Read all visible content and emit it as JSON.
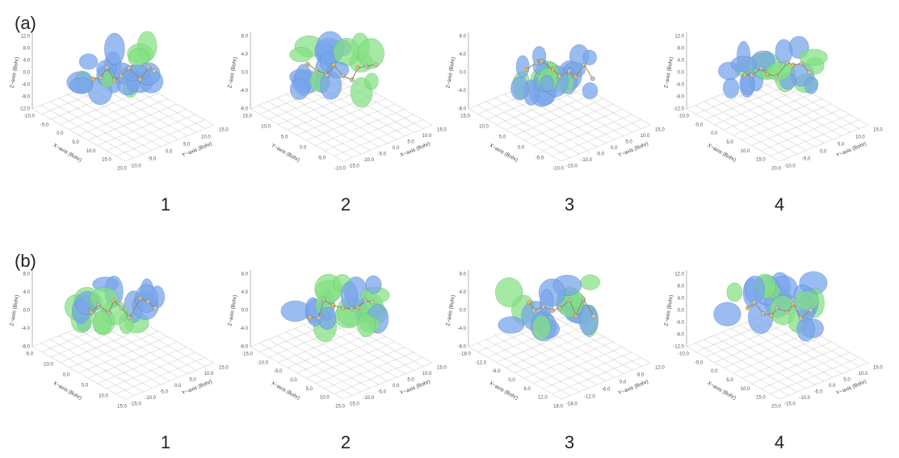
{
  "figure": {
    "rows": [
      {
        "label": "(a)",
        "panels": [
          {
            "number": "1",
            "axes": {
              "x_title": "X−axis (Bohr)",
              "y_title": "Y−axis (Bohr)",
              "z_title": "Z−axis (Bohr)",
              "x_ticks": [
                "-10.0",
                "-5.0",
                "0.0",
                "5.0",
                "10.0",
                "15.0",
                "20.0"
              ],
              "y_ticks": [
                "-10.0",
                "-5.0",
                "0.0",
                "5.0",
                "10.0",
                "15.0"
              ],
              "z_ticks": [
                "-12.0",
                "-8.0",
                "-4.0",
                "0.0",
                "4.0",
                "8.0",
                "12.0"
              ]
            }
          },
          {
            "number": "2",
            "axes": {
              "x_title": "Y−axis (Bohr)",
              "y_title": "X−axis (Bohr)",
              "z_title": "Z−axis (Bohr)",
              "x_ticks": [
                "15.0",
                "10.0",
                "5.0",
                "0.0",
                "-5.0",
                "-10.0"
              ],
              "y_ticks": [
                "-15.0",
                "-10.0",
                "-5.0",
                "0.0",
                "5.0",
                "10.0",
                "15.0"
              ],
              "z_ticks": [
                "-8.0",
                "-4.0",
                "0.0",
                "4.0",
                "8.0"
              ]
            }
          },
          {
            "number": "3",
            "axes": {
              "x_title": "X−axis (Bohr)",
              "y_title": "Y−axis (Bohr)",
              "z_title": "Z−axis (Bohr)",
              "x_ticks": [
                "15.0",
                "10.0",
                "5.0",
                "0.0",
                "-5.0",
                "-10.0"
              ],
              "y_ticks": [
                "-15.0",
                "-10.0",
                "-5.0",
                "0.0",
                "5.0",
                "10.0",
                "15.0"
              ],
              "z_ticks": [
                "-8.0",
                "-4.0",
                "0.0",
                "4.0",
                "8.0"
              ]
            }
          },
          {
            "number": "4",
            "axes": {
              "x_title": "X−axis (Bohr)",
              "y_title": "Y−axis (Bohr)",
              "z_title": "Z−axis (Bohr)",
              "x_ticks": [
                "-10.0",
                "-5.0",
                "0.0",
                "5.0",
                "10.0",
                "15.0",
                "20.0"
              ],
              "y_ticks": [
                "-10.0",
                "-5.0",
                "0.0",
                "5.0",
                "10.0",
                "15.0"
              ],
              "z_ticks": [
                "-12.0",
                "-8.0",
                "-4.0",
                "0.0",
                "4.0",
                "8.0",
                "12.0"
              ]
            }
          }
        ]
      },
      {
        "label": "(b)",
        "panels": [
          {
            "number": "1",
            "axes": {
              "x_title": "X−axis (Bohr)",
              "y_title": "Y−axis (Bohr)",
              "z_title": "Z−axis (Bohr)",
              "x_ticks": [
                "-5.0",
                "-10.0",
                "0.0",
                "5.0",
                "10.0",
                "15.0"
              ],
              "y_ticks": [
                "-15.0",
                "-10.0",
                "-5.0",
                "0.0",
                "5.0",
                "10.0",
                "15.0"
              ],
              "z_ticks": [
                "-8.0",
                "-4.0",
                "0.0",
                "4.0",
                "8.0"
              ]
            }
          },
          {
            "number": "2",
            "axes": {
              "x_title": "X−axis (Bohr)",
              "y_title": "Y−axis (Bohr)",
              "z_title": "Z−axis (Bohr)",
              "x_ticks": [
                "-15.0",
                "-10.0",
                "-5.0",
                "0.0",
                "5.0",
                "10.0",
                "15.0"
              ],
              "y_ticks": [
                "-15.0",
                "-10.0",
                "-5.0",
                "0.0",
                "5.0",
                "10.0",
                "15.0"
              ],
              "z_ticks": [
                "-8.0",
                "-4.0",
                "0.0",
                "4.0",
                "8.0"
              ]
            }
          },
          {
            "number": "3",
            "axes": {
              "x_title": "X−axis (Bohr)",
              "y_title": "Y−axis (Bohr)",
              "z_title": "Z−axis (Bohr)",
              "x_ticks": [
                "-18.0",
                "-12.0",
                "-6.0",
                "0.0",
                "6.0",
                "12.0",
                "18.0"
              ],
              "y_ticks": [
                "-18.0",
                "-12.0",
                "-6.0",
                "0.0",
                "6.0",
                "12.0"
              ],
              "z_ticks": [
                "-8.0",
                "-4.0",
                "0.0",
                "4.0",
                "8.0"
              ]
            }
          },
          {
            "number": "4",
            "axes": {
              "x_title": "X−axis (Bohr)",
              "y_title": "Y−axis (Bohr)",
              "z_title": "Z−axis (Bohr)",
              "x_ticks": [
                "-10.0",
                "-5.0",
                "0.0",
                "5.0",
                "10.0",
                "15.0",
                "20.0"
              ],
              "y_ticks": [
                "-15.0",
                "-10.0",
                "-5.0",
                "0.0",
                "5.0",
                "10.0",
                "15.0"
              ],
              "z_ticks": [
                "-12.0",
                "-8.0",
                "-4.0",
                "0.0",
                "4.0",
                "8.0",
                "12.0"
              ]
            }
          }
        ]
      }
    ]
  }
}
